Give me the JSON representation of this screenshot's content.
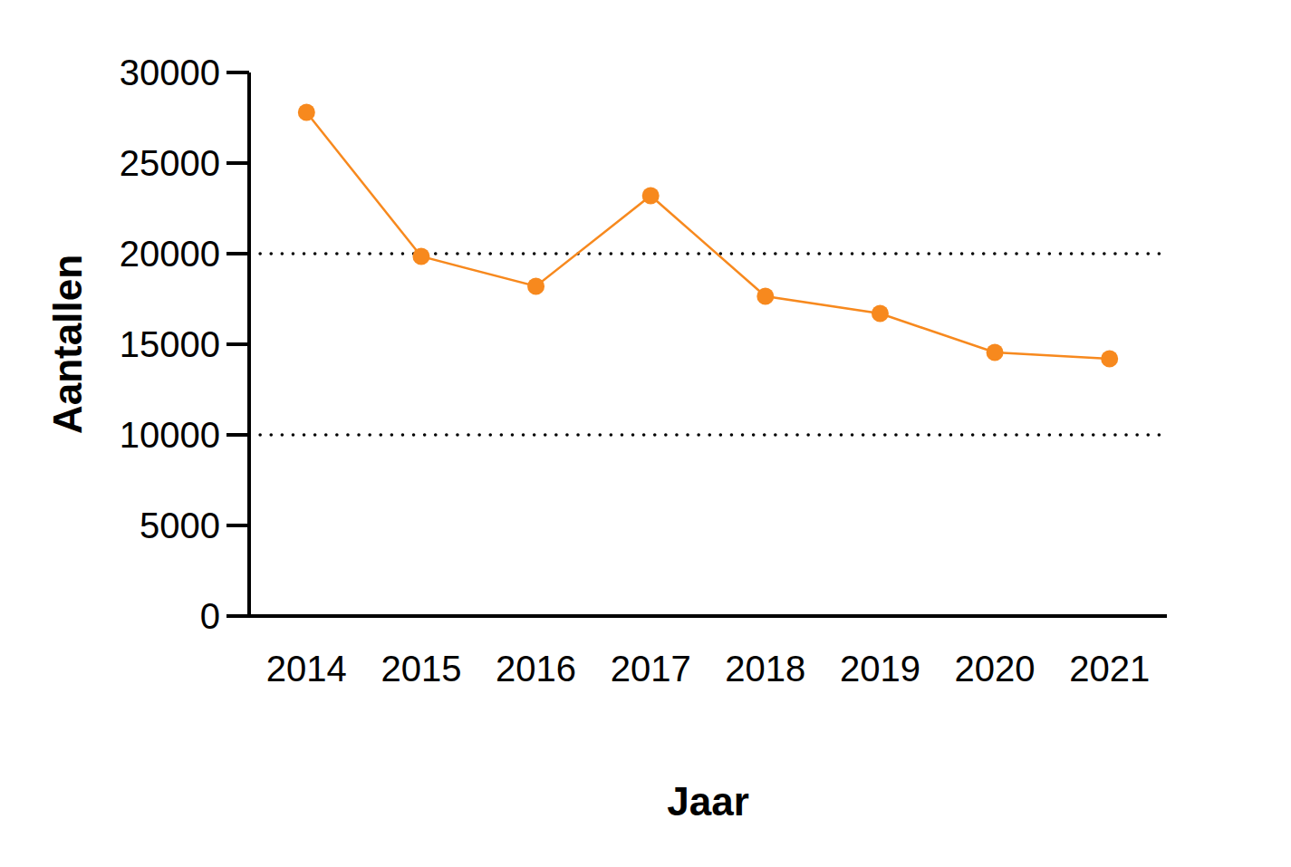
{
  "chart_data": {
    "type": "line",
    "categories": [
      "2014",
      "2015",
      "2016",
      "2017",
      "2018",
      "2019",
      "2020",
      "2021"
    ],
    "values": [
      27800,
      19850,
      18200,
      23200,
      17650,
      16700,
      14550,
      14200
    ],
    "color": "#f7891e",
    "marker": "circle",
    "line_style": "solid",
    "x_label": "Jaar",
    "y_label": "Aantallen",
    "ylim": [
      0,
      30000
    ],
    "yticks": [
      0,
      5000,
      10000,
      15000,
      20000,
      25000,
      30000
    ],
    "reference_lines": [
      10000,
      20000
    ],
    "grid": false
  }
}
